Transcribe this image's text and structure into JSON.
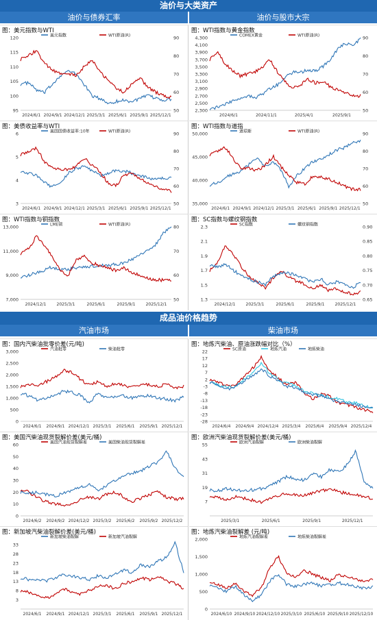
{
  "header": {
    "title": "油价与大类资产",
    "left_sub": "油价与债券汇率",
    "right_sub": "油价与股市大宗"
  },
  "section2": {
    "title": "成品油价格趋势",
    "left_sub": "汽油市场",
    "right_sub": "柴油市场"
  },
  "colors": {
    "red": "#c00000",
    "blue": "#2e75b6",
    "cyan": "#33c3e0",
    "band": "#1f67b1"
  },
  "charts": [
    {
      "id": "c1",
      "title": "图：美元指数与WTI",
      "type": "line",
      "x_ticks": [
        "2024/6/1",
        "2024/9/1",
        "2024/12/1",
        "2025/3/1",
        "2025/6/1",
        "2025/9/1",
        "2025/12/1"
      ],
      "left_ticks": [
        "120",
        "115",
        "110",
        "105",
        "100",
        "95"
      ],
      "left_range": [
        95,
        120
      ],
      "right_ticks": [
        "90",
        "80",
        "70",
        "60",
        "50"
      ],
      "right_range": [
        50,
        90
      ],
      "series": [
        {
          "name": "美元指数",
          "color": "blue",
          "axis": "left",
          "anchors": [
            104,
            104.5,
            102,
            101,
            104,
            107,
            108.5,
            107.5,
            104,
            100,
            99,
            97.5,
            98,
            98.5,
            98,
            99,
            100,
            99.2,
            98.5,
            98.8
          ]
        },
        {
          "name": "WTI原油(R)",
          "color": "red",
          "axis": "right",
          "anchors": [
            78,
            80,
            83,
            76,
            72,
            70,
            70,
            69,
            74,
            78,
            71,
            67,
            62,
            60,
            64,
            68,
            63,
            60,
            58,
            57
          ]
        }
      ]
    },
    {
      "id": "c2",
      "title": "图：WTI指数与黄金指数",
      "type": "line",
      "x_ticks": [
        "2024/6/1",
        "2024/11/1",
        "2025/4/1",
        "2025/9/1"
      ],
      "left_ticks": [
        "4,300",
        "4,100",
        "3,900",
        "3,700",
        "3,500",
        "3,300",
        "3,100",
        "2,900",
        "2,700",
        "2,500",
        "2,300"
      ],
      "left_range": [
        2300,
        4300
      ],
      "right_ticks": [
        "90",
        "80",
        "70",
        "60",
        "50"
      ],
      "right_range": [
        50,
        90
      ],
      "series": [
        {
          "name": "COMEX黄金",
          "color": "blue",
          "axis": "left",
          "anchors": [
            2350,
            2380,
            2450,
            2550,
            2650,
            2700,
            2650,
            2750,
            2900,
            3000,
            3200,
            3350,
            3350,
            3400,
            3380,
            3500,
            3700,
            4000,
            4150,
            4050,
            4300
          ]
        },
        {
          "name": "WTI原油(R)",
          "color": "red",
          "axis": "right",
          "anchors": [
            78,
            82,
            76,
            72,
            69,
            70,
            71,
            74,
            78,
            71,
            66,
            62,
            64,
            67,
            65,
            66,
            63,
            61,
            60,
            58,
            58
          ]
        }
      ]
    },
    {
      "id": "c3",
      "title": "图：美债收益率与WTI",
      "type": "line",
      "x_ticks": [
        "2024/6/1",
        "2024/9/1",
        "2024/12/1",
        "2025/3/1",
        "2025/6/1",
        "2025/9/1",
        "2025/12/1"
      ],
      "left_ticks": [
        "6",
        "5",
        "4",
        "3"
      ],
      "left_range": [
        3,
        6
      ],
      "right_ticks": [
        "90",
        "80",
        "70",
        "60",
        "50"
      ],
      "right_range": [
        50,
        90
      ],
      "series": [
        {
          "name": "美国国债收益率:10年",
          "color": "blue",
          "axis": "left",
          "anchors": [
            4.4,
            4.3,
            4.2,
            3.9,
            3.7,
            3.9,
            4.3,
            4.5,
            4.6,
            4.4,
            4.2,
            4.3,
            4.4,
            4.4,
            4.3,
            4.2,
            4.1,
            4.05,
            4.1,
            4.1
          ]
        },
        {
          "name": "WTI原油(R)",
          "color": "red",
          "axis": "right",
          "anchors": [
            78,
            80,
            82,
            74,
            70,
            70,
            69,
            71,
            76,
            72,
            68,
            62,
            60,
            66,
            67,
            64,
            62,
            60,
            58,
            57
          ]
        }
      ]
    },
    {
      "id": "c4",
      "title": "图：WTI指数与道指",
      "type": "line",
      "x_ticks": [
        "2024/6/1",
        "2024/9/1",
        "2024/12/1",
        "2025/3/1",
        "2025/6/1",
        "2025/9/1",
        "2025/12/1"
      ],
      "left_ticks": [
        "50,000",
        "45,000",
        "40,000",
        "35,000"
      ],
      "left_range": [
        35000,
        50000
      ],
      "right_ticks": [
        "90",
        "80",
        "70",
        "60",
        "50"
      ],
      "right_range": [
        50,
        90
      ],
      "series": [
        {
          "name": "道琼斯",
          "color": "blue",
          "axis": "left",
          "anchors": [
            39000,
            39500,
            40500,
            41500,
            42000,
            43500,
            44500,
            43000,
            44000,
            42000,
            38500,
            41000,
            42500,
            44000,
            44500,
            45500,
            46500,
            47000,
            48000,
            48500
          ]
        },
        {
          "name": "WTI原油(R)",
          "color": "red",
          "axis": "right",
          "anchors": [
            78,
            80,
            82,
            75,
            70,
            70,
            69,
            72,
            77,
            71,
            66,
            62,
            61,
            66,
            65,
            64,
            62,
            60,
            58,
            58
          ]
        }
      ]
    },
    {
      "id": "c5",
      "title": "图：WTI指数与铜指数",
      "type": "line",
      "x_ticks": [
        "2024/12/1",
        "2025/3/1",
        "2025/6/1",
        "2025/9/1",
        "2025/12/1"
      ],
      "left_ticks": [
        "13,000",
        "11,000",
        "9,000",
        "7,000"
      ],
      "left_range": [
        7000,
        13000
      ],
      "right_ticks": [
        "80",
        "70",
        "60",
        "50"
      ],
      "right_range": [
        50,
        80
      ],
      "series": [
        {
          "name": "LME铜",
          "color": "blue",
          "axis": "left",
          "anchors": [
            8900,
            9000,
            9200,
            9400,
            9700,
            9400,
            9500,
            9600,
            9700,
            9750,
            9800,
            9800,
            9900,
            10000,
            10300,
            10700,
            11000,
            11500,
            12500,
            13000
          ]
        },
        {
          "name": "WTI原油(R)",
          "color": "red",
          "axis": "right",
          "anchors": [
            69,
            71,
            76,
            72,
            68,
            62,
            60,
            66,
            68,
            65,
            64,
            63,
            62,
            63,
            61,
            60,
            59,
            58,
            58,
            58
          ]
        }
      ]
    },
    {
      "id": "c6",
      "title": "图：SC指数与螺纹钢指数",
      "type": "line",
      "x_ticks": [
        "2024/12/1",
        "2025/3/1",
        "2025/6/1",
        "2025/9/1",
        "2025/12/1"
      ],
      "left_ticks": [
        "2.3",
        "2.1",
        "1.9",
        "1.7",
        "1.5",
        "1.3"
      ],
      "left_range": [
        1.3,
        2.3
      ],
      "right_ticks": [
        "0.90",
        "0.85",
        "0.80",
        "0.75",
        "0.70",
        "0.65"
      ],
      "right_range": [
        0.65,
        0.9
      ],
      "series": [
        {
          "name": "SC指数",
          "color": "red",
          "axis": "left",
          "anchors": [
            1.7,
            1.8,
            2.05,
            1.9,
            1.75,
            1.6,
            1.55,
            1.45,
            1.6,
            1.7,
            1.6,
            1.55,
            1.5,
            1.45,
            1.5,
            1.42,
            1.45,
            1.4,
            1.38,
            1.4
          ]
        },
        {
          "name": "螺纹钢指数",
          "color": "blue",
          "axis": "right",
          "anchors": [
            0.77,
            0.76,
            0.77,
            0.75,
            0.73,
            0.72,
            0.71,
            0.7,
            0.73,
            0.74,
            0.74,
            0.73,
            0.72,
            0.71,
            0.72,
            0.7,
            0.71,
            0.7,
            0.69,
            0.71
          ]
        }
      ]
    },
    {
      "id": "c7",
      "title": "图：国内汽柴油批零价差(元/吨)",
      "type": "line",
      "x_ticks": [
        "2024/6/1",
        "2024/9/1",
        "2024/12/1",
        "2025/3/1",
        "2025/6/1",
        "2025/9/1",
        "2025/12/1"
      ],
      "left_ticks": [
        "3,000",
        "2,500",
        "2,000",
        "1,500",
        "1,000",
        "500",
        "0"
      ],
      "left_range": [
        0,
        3000
      ],
      "series": [
        {
          "name": "汽油批零",
          "color": "red",
          "axis": "left",
          "anchors": [
            1500,
            1600,
            1550,
            1700,
            1900,
            2200,
            2100,
            1800,
            1550,
            1700,
            1500,
            1600,
            1550,
            1450,
            1600,
            1550,
            1500,
            1600,
            1450,
            1500
          ]
        },
        {
          "name": "柴油批零",
          "color": "blue",
          "axis": "left",
          "anchors": [
            1200,
            1100,
            900,
            1000,
            1100,
            1300,
            1250,
            1100,
            800,
            1200,
            1000,
            1050,
            1100,
            1000,
            1050,
            1100,
            1000,
            950,
            900,
            1050
          ]
        }
      ]
    },
    {
      "id": "c8",
      "title": "图：地炼汽柴油、原油涨跌幅对比（%）",
      "type": "line",
      "x_ticks": [
        "2024/6/4",
        "2024/9/4",
        "2024/12/4",
        "2025/3/4",
        "2025/6/4",
        "2025/9/4",
        "2025/12/4"
      ],
      "left_ticks": [
        "22",
        "17",
        "12",
        "7",
        "2",
        "-3",
        "-8",
        "-13",
        "-18",
        "-23",
        "-28"
      ],
      "left_range": [
        -28,
        22
      ],
      "series": [
        {
          "name": "SC原油",
          "color": "red",
          "axis": "left",
          "anchors": [
            2,
            0,
            -3,
            -2,
            4,
            10,
            18,
            8,
            3,
            -2,
            0,
            -8,
            -12,
            -8,
            -10,
            -15,
            -16,
            -18,
            -20,
            -21
          ]
        },
        {
          "name": "地炼汽油",
          "color": "cyan",
          "axis": "left",
          "anchors": [
            1,
            -2,
            -4,
            -3,
            2,
            6,
            14,
            6,
            2,
            -1,
            -2,
            -6,
            -8,
            -9,
            -11,
            -12,
            -14,
            -15,
            -17,
            -18
          ]
        },
        {
          "name": "地炼柴油",
          "color": "blue",
          "axis": "left",
          "anchors": [
            0,
            -2,
            -5,
            -4,
            1,
            4,
            10,
            4,
            1,
            -3,
            -4,
            -7,
            -9,
            -10,
            -12,
            -14,
            -15,
            -16,
            -18,
            -19
          ]
        }
      ]
    },
    {
      "id": "c9",
      "title": "图：美国汽柴油现货裂解价差(美元/桶)",
      "type": "line",
      "x_ticks": [
        "2024/6/2",
        "2024/9/2",
        "2024/12/2",
        "2025/3/2",
        "2025/6/2",
        "2025/9/2",
        "2025/12/2"
      ],
      "left_ticks": [
        "60",
        "50",
        "40",
        "30",
        "20",
        "10",
        "0"
      ],
      "left_range": [
        0,
        60
      ],
      "series": [
        {
          "name": "美国汽油现货裂解差",
          "color": "red",
          "axis": "left",
          "anchors": [
            22,
            20,
            15,
            12,
            10,
            9,
            10,
            14,
            16,
            14,
            18,
            20,
            16,
            12,
            15,
            18,
            20,
            16,
            14,
            15
          ]
        },
        {
          "name": "美国柴油现货裂解差",
          "color": "blue",
          "axis": "left",
          "anchors": [
            20,
            19,
            20,
            18,
            17,
            19,
            22,
            24,
            26,
            22,
            25,
            30,
            33,
            36,
            38,
            42,
            45,
            55,
            40,
            33
          ]
        }
      ]
    },
    {
      "id": "c10",
      "title": "图：欧洲汽柴油现货裂解价差(美元/桶)",
      "type": "line",
      "x_ticks": [
        "2025/3/1",
        "2025/6/1",
        "2025/9/1",
        "2025/12/1"
      ],
      "left_ticks": [
        "55",
        "43",
        "31",
        "19",
        "7"
      ],
      "left_range": [
        -5,
        55
      ],
      "series": [
        {
          "name": "欧洲汽油裂解",
          "color": "red",
          "axis": "left",
          "anchors": [
            12,
            10,
            9,
            11,
            10,
            8,
            6,
            9,
            12,
            14,
            13,
            12,
            14,
            16,
            18,
            15,
            14,
            13,
            11,
            10
          ]
        },
        {
          "name": "欧洲柴油裂解",
          "color": "blue",
          "axis": "left",
          "anchors": [
            17,
            16,
            18,
            17,
            16,
            17,
            18,
            20,
            24,
            28,
            26,
            25,
            30,
            28,
            34,
            32,
            38,
            50,
            24,
            18
          ]
        }
      ]
    },
    {
      "id": "c11",
      "title": "图：新加坡汽柴油裂解价差(美元/桶)",
      "type": "line",
      "x_ticks": [
        "2024/6/1",
        "2024/9/1",
        "2024/12/1",
        "2025/3/1",
        "2025/6/1",
        "2025/9/1",
        "2025/12/1"
      ],
      "left_ticks": [
        "33",
        "28",
        "23",
        "18",
        "13",
        "8",
        "3"
      ],
      "left_range": [
        -2,
        36
      ],
      "series": [
        {
          "name": "新加坡柴油裂解",
          "color": "blue",
          "axis": "left",
          "anchors": [
            15,
            14,
            14,
            13,
            15,
            17,
            16,
            15,
            14,
            16,
            15,
            17,
            19,
            18,
            22,
            21,
            24,
            26,
            34,
            18
          ]
        },
        {
          "name": "新加坡汽油裂解",
          "color": "red",
          "axis": "left",
          "anchors": [
            8,
            7,
            5,
            4,
            6,
            9,
            7,
            6,
            8,
            10,
            11,
            9,
            12,
            13,
            15,
            14,
            16,
            13,
            12,
            9
          ]
        }
      ]
    },
    {
      "id": "c12",
      "title": "图：地炼汽柴油裂解差 (元/吨)",
      "type": "line",
      "x_ticks": [
        "2024/6/10",
        "2024/9/10",
        "2024/12/10",
        "2025/3/10",
        "2025/6/10",
        "2025/9/10",
        "2025/12/10"
      ],
      "left_ticks": [
        "2,000",
        "1,500",
        "1,000",
        "500",
        "0"
      ],
      "left_range": [
        0,
        2000
      ],
      "series": [
        {
          "name": "地炼汽油裂解差",
          "color": "red",
          "axis": "left",
          "anchors": [
            800,
            700,
            600,
            750,
            500,
            400,
            600,
            1200,
            1500,
            1000,
            900,
            1100,
            1000,
            900,
            800,
            1000,
            900,
            850,
            800,
            850
          ]
        },
        {
          "name": "地炼柴油裂解差",
          "color": "blue",
          "axis": "left",
          "anchors": [
            700,
            600,
            500,
            650,
            400,
            250,
            400,
            800,
            1000,
            700,
            650,
            700,
            750,
            650,
            700,
            750,
            700,
            650,
            600,
            650
          ]
        }
      ]
    }
  ]
}
